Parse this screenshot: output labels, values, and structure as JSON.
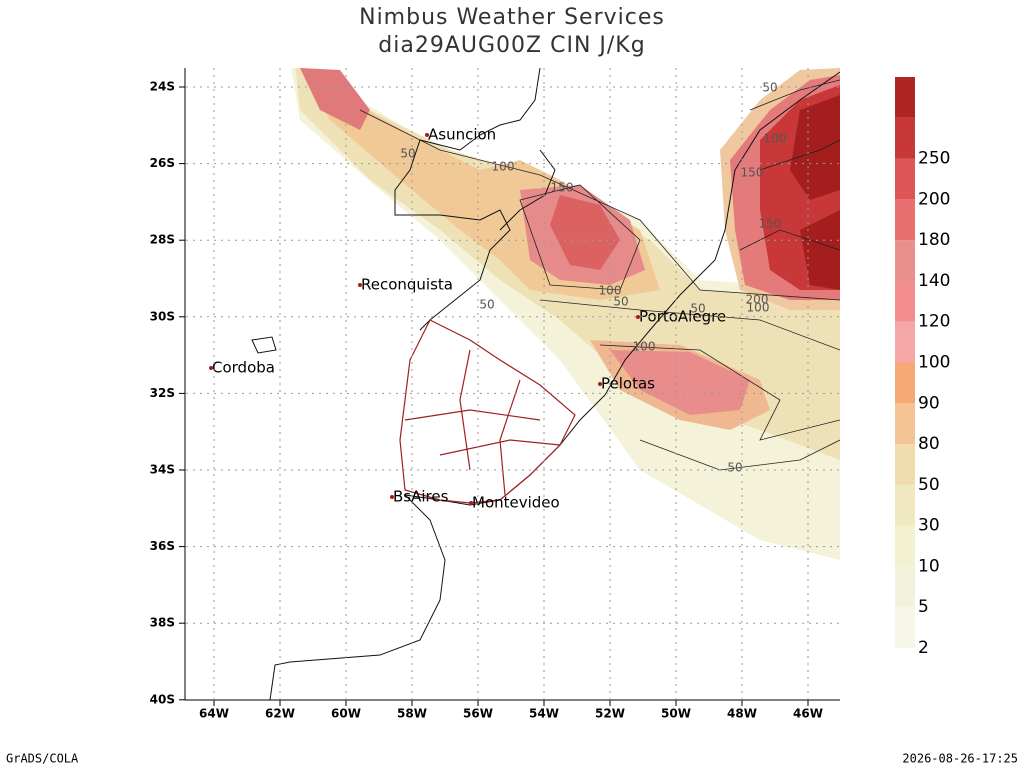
{
  "header": {
    "title": "Nimbus Weather Services",
    "subtitle": "dia29AUG00Z CIN J/Kg"
  },
  "lat_labels": [
    "24S",
    "26S",
    "28S",
    "30S",
    "32S",
    "34S",
    "36S",
    "38S",
    "40S"
  ],
  "lon_labels": [
    "64W",
    "62W",
    "60W",
    "58W",
    "56W",
    "54W",
    "52W",
    "50W",
    "48W",
    "46W"
  ],
  "cities": [
    "Asuncion",
    "Reconquista",
    "Cordoba",
    "PortoAlegre",
    "Pelotas",
    "BsAires",
    "Montevideo"
  ],
  "contour_labels": [
    "50",
    "100",
    "150",
    "100",
    "50",
    "50",
    "50",
    "100",
    "200",
    "100",
    "50",
    "50",
    "100",
    "150",
    "150"
  ],
  "colorbar": {
    "labels": [
      "2",
      "5",
      "10",
      "30",
      "50",
      "80",
      "90",
      "100",
      "120",
      "140",
      "180",
      "200",
      "250"
    ],
    "colors": [
      "#f6f7e6",
      "#f2f3dc",
      "#f2f1d0",
      "#efe8c0",
      "#f0dcac",
      "#f4c494",
      "#f7a874",
      "#f6a8a8",
      "#f28e8e",
      "#e9908c",
      "#e87070",
      "#dc5656",
      "#c83838",
      "#b02424"
    ]
  },
  "footer": {
    "left": "GrADS/COLA",
    "right": "2026-08-26-17:25"
  }
}
